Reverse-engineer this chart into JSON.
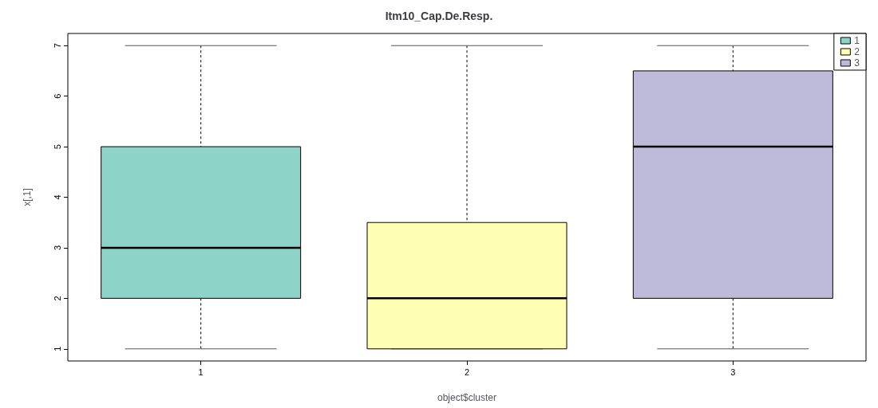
{
  "chart_data": {
    "type": "box",
    "title": "Itm10_Cap.De.Resp.",
    "xlabel": "object$cluster",
    "ylabel": "x[,1]",
    "categories": [
      "1",
      "2",
      "3"
    ],
    "series": [
      {
        "name": "1",
        "color": "#8dd3c7",
        "boxes": [
          {
            "low": 1,
            "q1": 2,
            "median": 3,
            "q3": 5,
            "high": 7
          },
          null,
          null
        ]
      },
      {
        "name": "2",
        "color": "#ffffb3",
        "boxes": [
          null,
          {
            "low": 1,
            "q1": 1,
            "median": 2,
            "q3": 3.5,
            "high": 7
          },
          null
        ]
      },
      {
        "name": "3",
        "color": "#bebada",
        "boxes": [
          null,
          null,
          {
            "low": 1,
            "q1": 2,
            "median": 5,
            "q3": 6.5,
            "high": 7
          }
        ]
      }
    ],
    "ylim": [
      0.76,
      7.24
    ],
    "yticks": [
      1,
      2,
      3,
      4,
      5,
      6,
      7
    ],
    "grid": false,
    "legend": "top right"
  }
}
